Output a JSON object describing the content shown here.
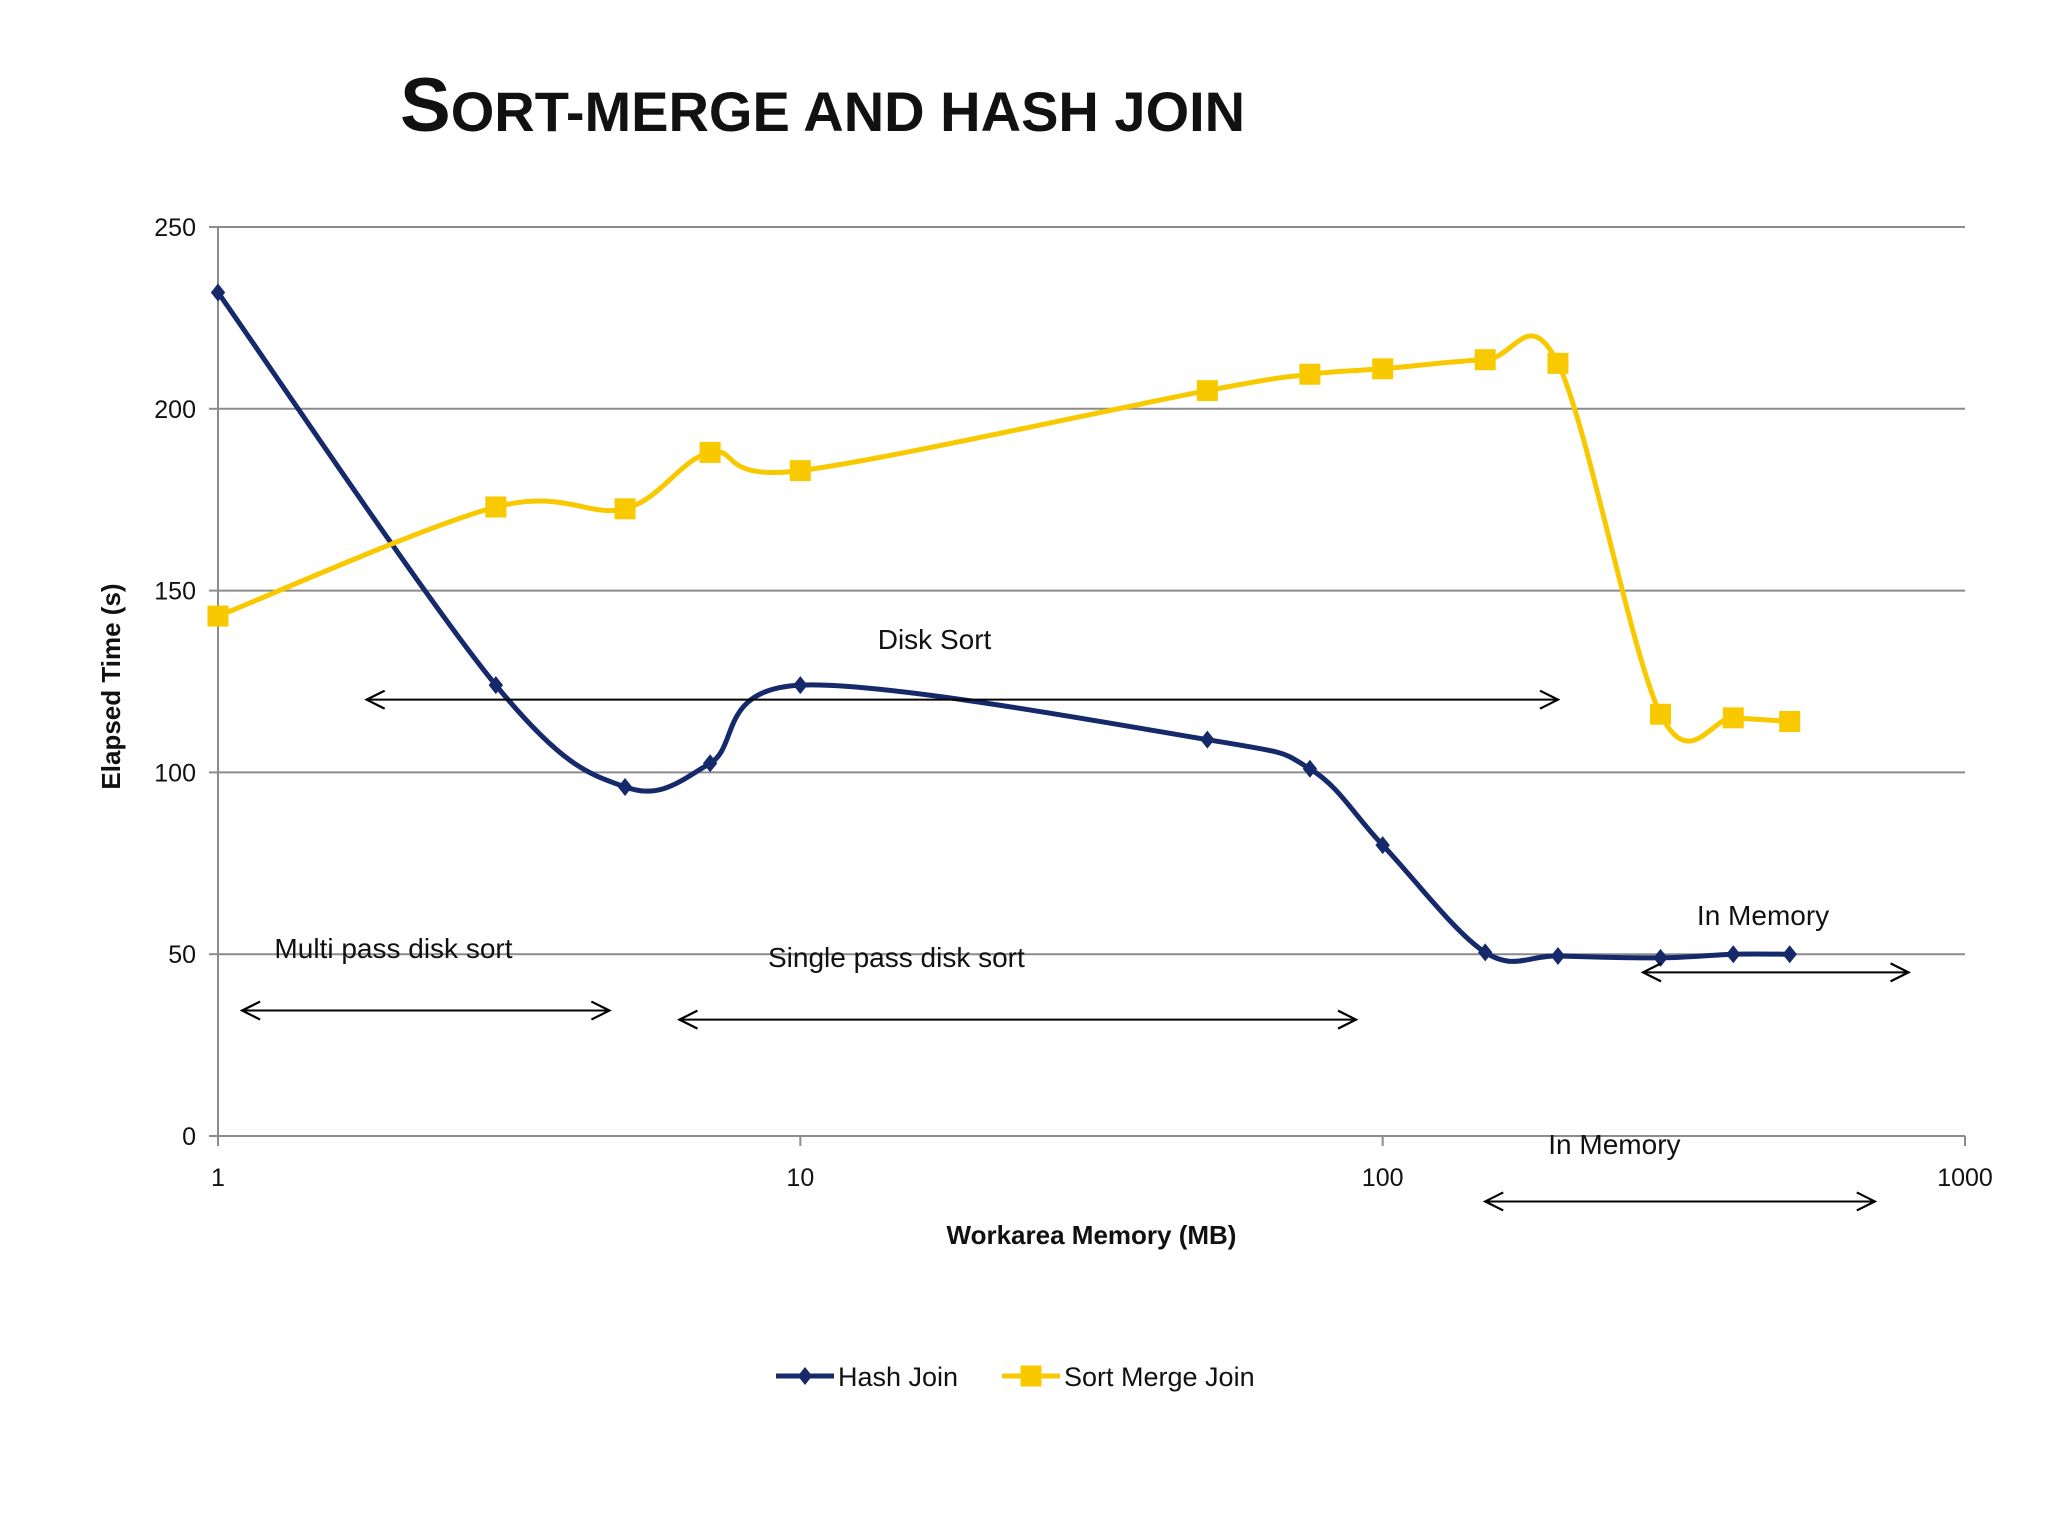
{
  "slide": {
    "title_first": "S",
    "title_rest": "ORT-MERGE AND HASH JOIN"
  },
  "chart_data": {
    "type": "line",
    "title": "Sort-merge and hash join",
    "xlabel": "Workarea Memory (MB)",
    "ylabel": "Elapsed Time (s)",
    "x_scale": "log",
    "xlim": [
      1,
      1000
    ],
    "ylim": [
      0,
      250
    ],
    "x_ticks": [
      {
        "value": 1,
        "label": "1"
      },
      {
        "value": 10,
        "label": "10"
      },
      {
        "value": 100,
        "label": "100"
      },
      {
        "value": 1000,
        "label": "1000"
      }
    ],
    "y_ticks": [
      {
        "value": 0,
        "label": "0"
      },
      {
        "value": 50,
        "label": "50"
      },
      {
        "value": 100,
        "label": "100"
      },
      {
        "value": 150,
        "label": "150"
      },
      {
        "value": 200,
        "label": "200"
      },
      {
        "value": 250,
        "label": "250"
      }
    ],
    "grid": true,
    "legend_position": "bottom",
    "series": [
      {
        "name": "Hash Join",
        "color": "#15296b",
        "marker": "diamond",
        "points": [
          [
            1,
            232
          ],
          [
            3,
            124
          ],
          [
            5,
            96
          ],
          [
            7,
            102.5
          ],
          [
            10,
            124
          ],
          [
            50,
            109
          ],
          [
            75,
            101
          ],
          [
            100,
            80
          ],
          [
            150,
            50.5
          ],
          [
            200,
            49.5
          ],
          [
            300,
            49
          ],
          [
            400,
            50
          ],
          [
            500,
            50
          ]
        ]
      },
      {
        "name": "Sort Merge Join",
        "color": "#f9c900",
        "marker": "square",
        "points": [
          [
            1,
            143
          ],
          [
            3,
            173
          ],
          [
            5,
            172.5
          ],
          [
            7,
            188
          ],
          [
            10,
            183
          ],
          [
            50,
            205
          ],
          [
            75,
            209.5
          ],
          [
            100,
            211
          ],
          [
            150,
            213.5
          ],
          [
            200,
            212.5
          ],
          [
            300,
            116
          ],
          [
            400,
            115
          ],
          [
            500,
            114
          ]
        ]
      }
    ],
    "annotations": [
      {
        "id": "disk-sort",
        "text": "Disk Sort",
        "at": [
          17,
          134
        ],
        "anchor": "middle",
        "arrow": [
          [
            1.8,
            120
          ],
          [
            200,
            120
          ]
        ]
      },
      {
        "id": "multi-pass",
        "text": "Multi pass disk sort",
        "at": [
          1.25,
          49
        ],
        "anchor": "start",
        "arrow": [
          [
            1.1,
            34.5
          ],
          [
            4.7,
            34.5
          ]
        ]
      },
      {
        "id": "single-pass",
        "text": "Single pass disk sort",
        "at": [
          8.8,
          46.5
        ],
        "anchor": "start",
        "arrow": [
          [
            6.2,
            32
          ],
          [
            90,
            32
          ]
        ]
      },
      {
        "id": "in-memory-right",
        "text": "In Memory",
        "at": [
          450,
          58
        ],
        "anchor": "middle",
        "arrow": [
          [
            280,
            45
          ],
          [
            800,
            45
          ]
        ]
      },
      {
        "id": "in-memory-below",
        "text": "In Memory",
        "at": [
          250,
          -5
        ],
        "anchor": "middle",
        "arrow": [
          [
            150,
            -18
          ],
          [
            700,
            -18
          ]
        ]
      }
    ]
  }
}
